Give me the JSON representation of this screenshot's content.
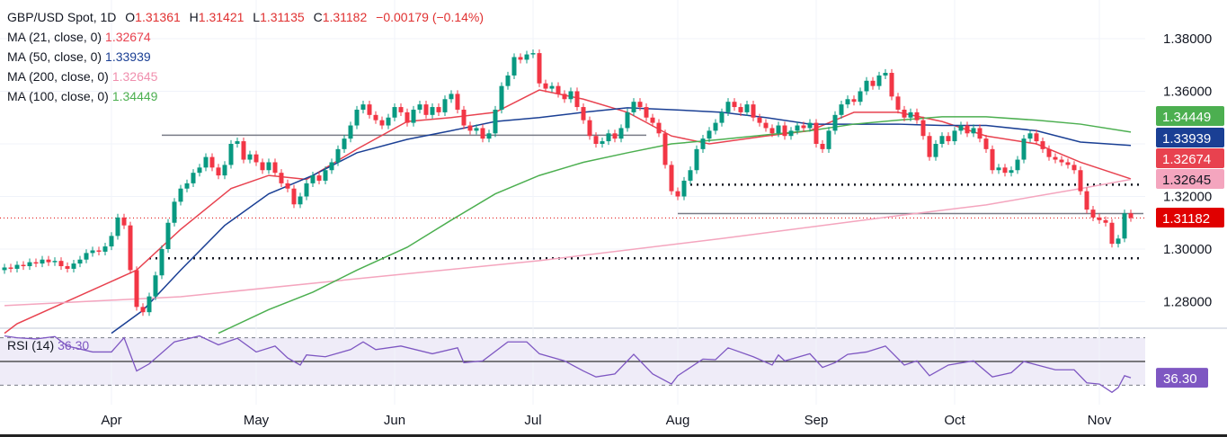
{
  "legend": {
    "symbol": "GBP/USD Spot, 1D",
    "open_label": "O",
    "open": "1.31361",
    "high_label": "H",
    "high": "1.31421",
    "low_label": "L",
    "low": "1.31135",
    "close_label": "C",
    "close": "1.31182",
    "change": "−0.00179 (−0.14%)",
    "ma": [
      {
        "label": "MA (21, close, 0)",
        "value": "1.32674",
        "color": "#e8424f"
      },
      {
        "label": "MA (50, close, 0)",
        "value": "1.33939",
        "color": "#1a3f94"
      },
      {
        "label": "MA (200, close, 0)",
        "value": "1.32645",
        "color": "#f08fae"
      },
      {
        "label": "MA (100, close, 0)",
        "value": "1.34449",
        "color": "#4caf50"
      }
    ]
  },
  "rsi_legend": {
    "label": "RSI (14)",
    "value": "36.30"
  },
  "chart_data": {
    "type": "candlestick",
    "title": "GBP/USD Spot, 1D",
    "ylim": [
      1.265,
      1.39
    ],
    "yticks": [
      1.28,
      1.3,
      1.32,
      1.34,
      1.36,
      1.38
    ],
    "ytick_labels": [
      "1.28000",
      "1.30000",
      "1.32000",
      "",
      "1.36000",
      "1.38000"
    ],
    "grid": true,
    "first_open": 1.292,
    "closes": [
      1.293,
      1.2925,
      1.294,
      1.2935,
      1.295,
      1.2945,
      1.296,
      1.295,
      1.2955,
      1.2935,
      1.2925,
      1.2945,
      1.296,
      1.2985,
      1.2995,
      1.299,
      1.301,
      1.305,
      1.312,
      1.309,
      1.292,
      1.278,
      1.276,
      1.282,
      1.29,
      1.3,
      1.31,
      1.318,
      1.323,
      1.325,
      1.329,
      1.331,
      1.335,
      1.331,
      1.328,
      1.332,
      1.34,
      1.341,
      1.334,
      1.336,
      1.333,
      1.33,
      1.333,
      1.329,
      1.325,
      1.323,
      1.317,
      1.32,
      1.325,
      1.328,
      1.326,
      1.33,
      1.333,
      1.338,
      1.342,
      1.347,
      1.353,
      1.355,
      1.351,
      1.349,
      1.347,
      1.35,
      1.354,
      1.352,
      1.348,
      1.353,
      1.355,
      1.351,
      1.354,
      1.352,
      1.357,
      1.359,
      1.353,
      1.347,
      1.345,
      1.346,
      1.342,
      1.344,
      1.353,
      1.362,
      1.366,
      1.373,
      1.372,
      1.374,
      1.3745,
      1.363,
      1.361,
      1.362,
      1.359,
      1.357,
      1.36,
      1.354,
      1.349,
      1.343,
      1.34,
      1.341,
      1.344,
      1.342,
      1.346,
      1.352,
      1.356,
      1.354,
      1.35,
      1.348,
      1.344,
      1.332,
      1.322,
      1.32,
      1.326,
      1.33,
      1.338,
      1.342,
      1.345,
      1.348,
      1.352,
      1.356,
      1.354,
      1.352,
      1.355,
      1.35,
      1.348,
      1.346,
      1.344,
      1.347,
      1.343,
      1.345,
      1.347,
      1.346,
      1.348,
      1.34,
      1.338,
      1.345,
      1.351,
      1.355,
      1.357,
      1.356,
      1.36,
      1.364,
      1.362,
      1.366,
      1.367,
      1.358,
      1.353,
      1.35,
      1.352,
      1.349,
      1.343,
      1.335,
      1.34,
      1.343,
      1.341,
      1.345,
      1.347,
      1.344,
      1.346,
      1.342,
      1.338,
      1.33,
      1.331,
      1.329,
      1.33,
      1.334,
      1.342,
      1.344,
      1.341,
      1.338,
      1.335,
      1.334,
      1.333,
      1.332,
      1.33,
      1.322,
      1.315,
      1.312,
      1.311,
      1.31,
      1.302,
      1.304,
      1.3136,
      1.3118
    ],
    "x_tick_labels": [
      {
        "bar": 17,
        "label": "Apr"
      },
      {
        "bar": 40,
        "label": "May"
      },
      {
        "bar": 62,
        "label": "Jun"
      },
      {
        "bar": 84,
        "label": "Jul"
      },
      {
        "bar": 107,
        "label": "Aug"
      },
      {
        "bar": 129,
        "label": "Sep"
      },
      {
        "bar": 151,
        "label": "Oct"
      },
      {
        "bar": 174,
        "label": "Nov"
      }
    ],
    "moving_averages": [
      {
        "name": "MA (21, close, 0)",
        "color": "#e8424f",
        "last": "1.32674",
        "points": [
          [
            0,
            1.268
          ],
          [
            2,
            1.2716
          ],
          [
            21,
            1.292
          ],
          [
            28,
            1.3075
          ],
          [
            36,
            1.323
          ],
          [
            42,
            1.328
          ],
          [
            48,
            1.3265
          ],
          [
            56,
            1.338
          ],
          [
            64,
            1.3485
          ],
          [
            71,
            1.35
          ],
          [
            78,
            1.352
          ],
          [
            85,
            1.3605
          ],
          [
            92,
            1.357
          ],
          [
            99,
            1.352
          ],
          [
            106,
            1.343
          ],
          [
            112,
            1.34
          ],
          [
            121,
            1.343
          ],
          [
            128,
            1.345
          ],
          [
            135,
            1.352
          ],
          [
            142,
            1.352
          ],
          [
            149,
            1.3485
          ],
          [
            156,
            1.343
          ],
          [
            164,
            1.34
          ],
          [
            171,
            1.333
          ],
          [
            179,
            1.3267
          ]
        ]
      },
      {
        "name": "MA (50, close, 0)",
        "color": "#1a3f94",
        "last": "1.33939",
        "points": [
          [
            17,
            1.268
          ],
          [
            22,
            1.2767
          ],
          [
            28,
            1.292
          ],
          [
            35,
            1.309
          ],
          [
            42,
            1.321
          ],
          [
            49,
            1.328
          ],
          [
            56,
            1.3366
          ],
          [
            64,
            1.3417
          ],
          [
            71,
            1.345
          ],
          [
            78,
            1.3485
          ],
          [
            85,
            1.35
          ],
          [
            92,
            1.352
          ],
          [
            99,
            1.3537
          ],
          [
            106,
            1.353
          ],
          [
            114,
            1.352
          ],
          [
            121,
            1.35
          ],
          [
            128,
            1.3475
          ],
          [
            135,
            1.3475
          ],
          [
            142,
            1.3475
          ],
          [
            149,
            1.347
          ],
          [
            156,
            1.347
          ],
          [
            164,
            1.345
          ],
          [
            171,
            1.3407
          ],
          [
            179,
            1.3394
          ]
        ]
      },
      {
        "name": "MA (200, close, 0)",
        "color": "#f4a5be",
        "last": "1.32645",
        "points": [
          [
            0,
            1.2785
          ],
          [
            28,
            1.2819
          ],
          [
            56,
            1.2887
          ],
          [
            85,
            1.2956
          ],
          [
            114,
            1.304
          ],
          [
            142,
            1.3127
          ],
          [
            156,
            1.3168
          ],
          [
            171,
            1.323
          ],
          [
            179,
            1.3265
          ]
        ]
      },
      {
        "name": "MA (100, close, 0)",
        "color": "#4caf50",
        "last": "1.34449",
        "points": [
          [
            34,
            1.268
          ],
          [
            42,
            1.277
          ],
          [
            49,
            1.2836
          ],
          [
            56,
            1.292
          ],
          [
            64,
            1.3007
          ],
          [
            71,
            1.311
          ],
          [
            78,
            1.321
          ],
          [
            85,
            1.328
          ],
          [
            92,
            1.333
          ],
          [
            99,
            1.3366
          ],
          [
            106,
            1.34
          ],
          [
            114,
            1.3417
          ],
          [
            121,
            1.3434
          ],
          [
            128,
            1.345
          ],
          [
            135,
            1.3475
          ],
          [
            142,
            1.349
          ],
          [
            149,
            1.3503
          ],
          [
            156,
            1.3503
          ],
          [
            164,
            1.349
          ],
          [
            171,
            1.3475
          ],
          [
            179,
            1.3445
          ]
        ]
      }
    ],
    "levels": [
      {
        "price": 1.3433,
        "from_bar": 25,
        "to_bar": 102,
        "style": "solid",
        "color": "#787b86"
      },
      {
        "price": 1.3135,
        "from_bar": 107,
        "to_bar": 181,
        "style": "solid",
        "color": "#787b86"
      },
      {
        "price": 1.3245,
        "from_bar": 108,
        "to_bar": 181,
        "style": "dotted",
        "color": "#131722"
      },
      {
        "price": 1.2965,
        "from_bar": 23,
        "to_bar": 181,
        "style": "dotted",
        "color": "#131722"
      }
    ],
    "last_price": {
      "value": 1.31182,
      "label": "1.31182",
      "color": "#e00000"
    },
    "price_labels": [
      {
        "value": 1.34449,
        "label": "1.34449",
        "bg": "#4caf50",
        "fg": "#ffffff"
      },
      {
        "value": 1.33939,
        "label": "1.33939",
        "bg": "#1a3f94",
        "fg": "#ffffff"
      },
      {
        "value": 1.32674,
        "label": "1.32674",
        "bg": "#e8424f",
        "fg": "#ffffff"
      },
      {
        "value": 1.32645,
        "label": "1.32645",
        "bg": "#f4a5be",
        "fg": "#131722"
      }
    ],
    "colors": {
      "up": "#089981",
      "down": "#f23645"
    },
    "rsi": {
      "name": "RSI (14)",
      "period": 14,
      "last": "36.30",
      "color": "#7e57c2",
      "levels": [
        70,
        50,
        30
      ],
      "ylim": [
        20,
        80
      ],
      "points": [
        [
          0,
          71.5
        ],
        [
          2,
          70
        ],
        [
          5,
          69
        ],
        [
          8,
          71
        ],
        [
          10,
          63
        ],
        [
          14,
          58
        ],
        [
          17,
          58
        ],
        [
          19,
          70
        ],
        [
          21,
          42
        ],
        [
          23,
          48
        ],
        [
          27,
          66.5
        ],
        [
          31,
          71.5
        ],
        [
          34,
          64
        ],
        [
          37,
          69.5
        ],
        [
          40,
          58
        ],
        [
          43,
          63
        ],
        [
          45,
          53
        ],
        [
          47,
          47
        ],
        [
          48,
          55.5
        ],
        [
          51,
          54
        ],
        [
          55,
          60
        ],
        [
          57,
          66.5
        ],
        [
          59,
          60
        ],
        [
          63,
          63
        ],
        [
          68,
          56.5
        ],
        [
          72,
          61.5
        ],
        [
          73,
          49
        ],
        [
          76,
          50.5
        ],
        [
          80,
          66.5
        ],
        [
          83,
          66.5
        ],
        [
          85,
          56.5
        ],
        [
          89,
          50.5
        ],
        [
          92,
          42
        ],
        [
          94,
          37
        ],
        [
          97,
          39.5
        ],
        [
          100,
          56
        ],
        [
          103,
          39.5
        ],
        [
          106,
          31
        ],
        [
          107,
          38
        ],
        [
          111,
          52
        ],
        [
          113,
          51.5
        ],
        [
          115,
          61.5
        ],
        [
          119,
          54
        ],
        [
          122,
          47
        ],
        [
          123,
          55.5
        ],
        [
          124,
          50.5
        ],
        [
          128,
          56.5
        ],
        [
          130,
          45
        ],
        [
          132,
          49
        ],
        [
          134,
          56
        ],
        [
          137,
          58
        ],
        [
          140,
          63
        ],
        [
          143,
          47
        ],
        [
          145,
          50.5
        ],
        [
          147,
          38
        ],
        [
          150,
          47
        ],
        [
          154,
          50.5
        ],
        [
          157,
          37
        ],
        [
          160,
          40.5
        ],
        [
          162,
          50
        ],
        [
          167,
          43
        ],
        [
          170,
          43
        ],
        [
          172,
          32
        ],
        [
          174,
          31
        ],
        [
          176,
          24
        ],
        [
          177,
          28
        ],
        [
          178,
          38
        ],
        [
          179,
          36.3
        ]
      ]
    }
  }
}
